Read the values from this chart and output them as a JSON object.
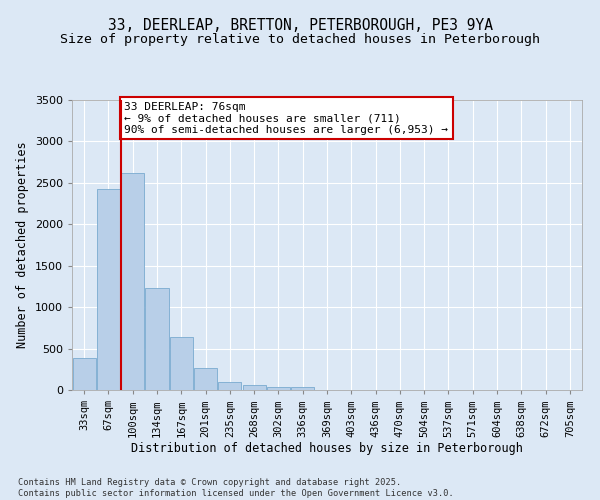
{
  "title_line1": "33, DEERLEAP, BRETTON, PETERBOROUGH, PE3 9YA",
  "title_line2": "Size of property relative to detached houses in Peterborough",
  "xlabel": "Distribution of detached houses by size in Peterborough",
  "ylabel": "Number of detached properties",
  "categories": [
    "33sqm",
    "67sqm",
    "100sqm",
    "134sqm",
    "167sqm",
    "201sqm",
    "235sqm",
    "268sqm",
    "302sqm",
    "336sqm",
    "369sqm",
    "403sqm",
    "436sqm",
    "470sqm",
    "504sqm",
    "537sqm",
    "571sqm",
    "604sqm",
    "638sqm",
    "672sqm",
    "705sqm"
  ],
  "bar_heights": [
    390,
    2420,
    2620,
    1230,
    640,
    260,
    95,
    55,
    40,
    35,
    5,
    2,
    2,
    0,
    0,
    0,
    0,
    0,
    0,
    0,
    0
  ],
  "bar_color": "#b8cfe8",
  "bar_edge_color": "#7aaad0",
  "bg_color": "#dce8f5",
  "grid_color": "#ffffff",
  "annotation_text": "33 DEERLEAP: 76sqm\n← 9% of detached houses are smaller (711)\n90% of semi-detached houses are larger (6,953) →",
  "vline_color": "#cc0000",
  "vline_pos": 1.5,
  "annotation_box_edge": "#cc0000",
  "ylim": [
    0,
    3500
  ],
  "yticks": [
    0,
    500,
    1000,
    1500,
    2000,
    2500,
    3000,
    3500
  ],
  "footer": "Contains HM Land Registry data © Crown copyright and database right 2025.\nContains public sector information licensed under the Open Government Licence v3.0.",
  "title_fontsize": 10.5,
  "subtitle_fontsize": 9.5,
  "axis_label_fontsize": 8.5,
  "tick_fontsize": 7.5,
  "annotation_fontsize": 8
}
